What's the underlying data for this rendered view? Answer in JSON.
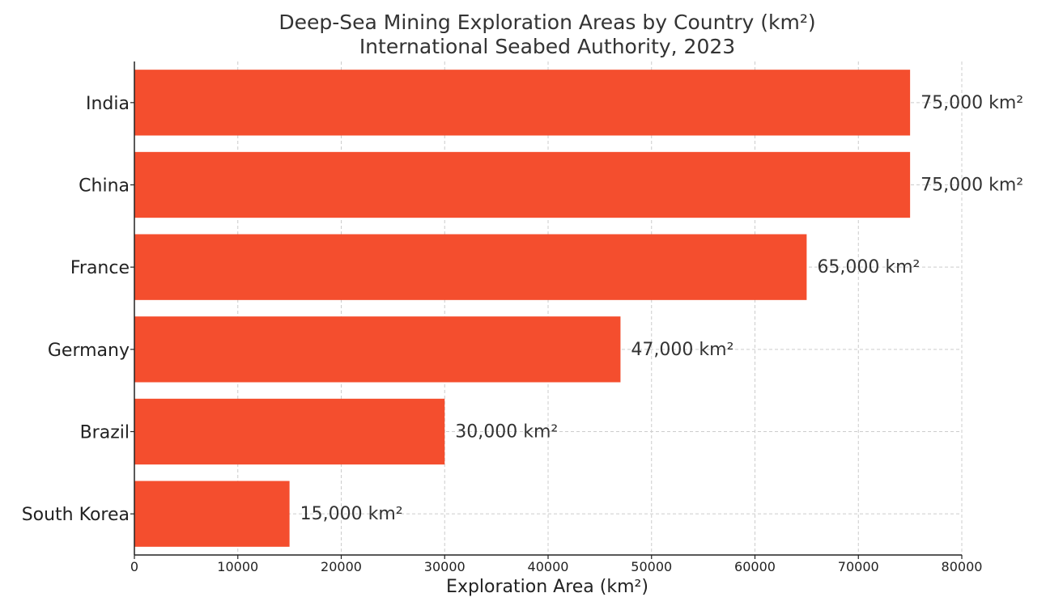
{
  "chart_data": {
    "type": "bar",
    "orientation": "horizontal",
    "title": "Deep-Sea Mining Exploration Areas by Country (km²)",
    "subtitle": "International Seabed Authority, 2023",
    "xlabel": "Exploration Area (km²)",
    "ylabel": "",
    "categories": [
      "India",
      "China",
      "France",
      "Germany",
      "Brazil",
      "South Korea"
    ],
    "values": [
      75000,
      75000,
      65000,
      47000,
      30000,
      15000
    ],
    "data_labels": [
      "75,000 km²",
      "75,000 km²",
      "65,000 km²",
      "47,000 km²",
      "30,000 km²",
      "15,000 km²"
    ],
    "xlim": [
      0,
      80000
    ],
    "xticks": [
      0,
      10000,
      20000,
      30000,
      40000,
      50000,
      60000,
      70000,
      80000
    ],
    "xtick_labels": [
      "0",
      "10000",
      "20000",
      "30000",
      "40000",
      "50000",
      "60000",
      "70000",
      "80000"
    ],
    "grid": true,
    "colors": {
      "bar": "#f44e2e"
    }
  }
}
